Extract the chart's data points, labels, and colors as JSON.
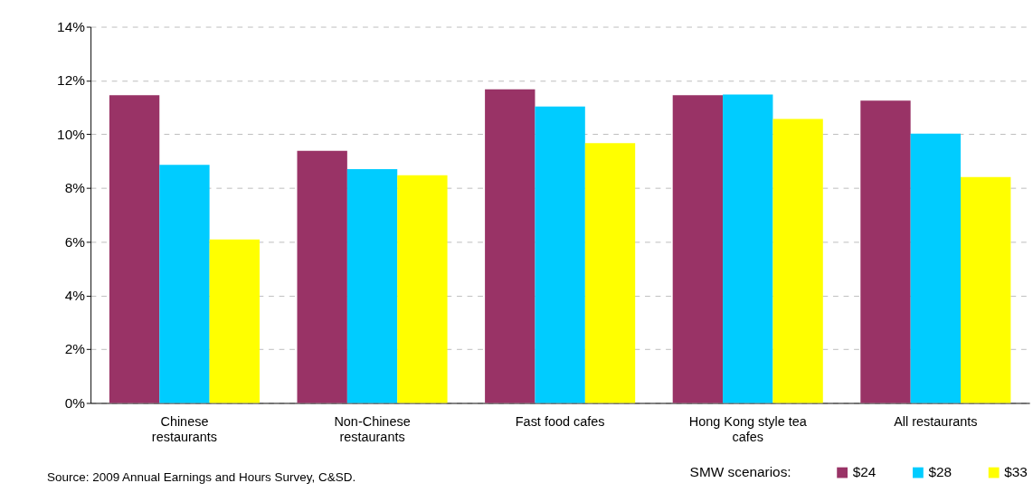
{
  "chart_data": {
    "type": "bar",
    "categories": [
      "Chinese restaurants",
      "Non-Chinese restaurants",
      "Fast food cafes",
      "Hong Kong style tea cafes",
      "All restaurants"
    ],
    "series": [
      {
        "name": "$24",
        "color": "#993366",
        "values": [
          11.45,
          9.38,
          11.67,
          11.45,
          11.25
        ]
      },
      {
        "name": "$28",
        "color": "#00ccff",
        "values": [
          8.86,
          8.7,
          11.03,
          11.48,
          10.02
        ]
      },
      {
        "name": "$33",
        "color": "#ffff00",
        "values": [
          6.08,
          8.47,
          9.67,
          10.57,
          8.41
        ]
      }
    ],
    "legend_title": "SMW scenarios:",
    "ylim": [
      0,
      14
    ],
    "yticks": [
      {
        "value": 0,
        "label": "0%"
      },
      {
        "value": 2,
        "label": "2%"
      },
      {
        "value": 4,
        "label": "4%"
      },
      {
        "value": 6,
        "label": "6%"
      },
      {
        "value": 8,
        "label": "8%"
      },
      {
        "value": 10,
        "label": "10%"
      },
      {
        "value": 12,
        "label": "12%"
      },
      {
        "value": 14,
        "label": "14%"
      }
    ],
    "grid": "y",
    "legend": "bottom right",
    "annotations": [
      "Source: 2009 Annual Earnings and Hours Survey, C&SD."
    ]
  }
}
